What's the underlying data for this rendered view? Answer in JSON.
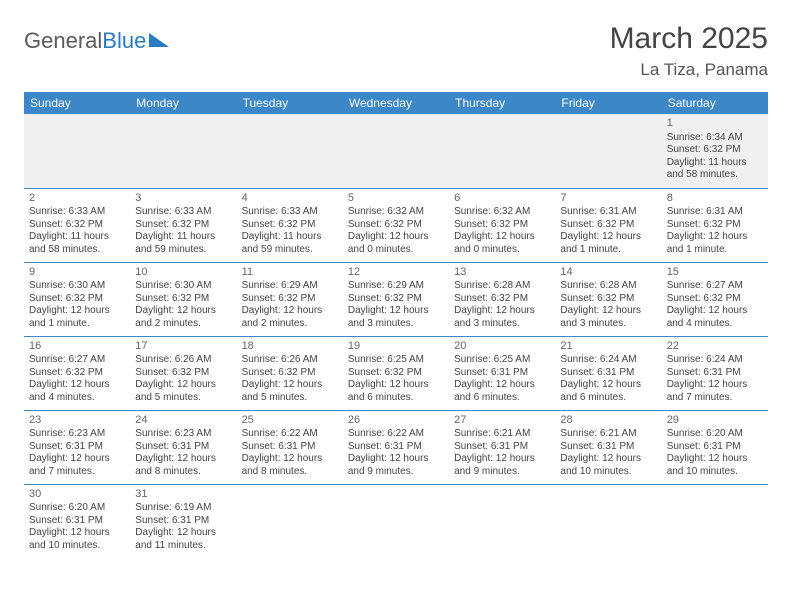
{
  "brand": {
    "part1": "General",
    "part2": "Blue"
  },
  "title": "March 2025",
  "location": "La Tiza, Panama",
  "colors": {
    "header_bg": "#3b87c8",
    "header_text": "#ffffff",
    "cell_border": "#3b87c8",
    "text": "#444444",
    "empty_bg": "#f0f0f0"
  },
  "day_headers": [
    "Sunday",
    "Monday",
    "Tuesday",
    "Wednesday",
    "Thursday",
    "Friday",
    "Saturday"
  ],
  "weeks": [
    [
      null,
      null,
      null,
      null,
      null,
      null,
      {
        "n": 1,
        "sunrise": "6:34 AM",
        "sunset": "6:32 PM",
        "daylight": "11 hours and 58 minutes."
      }
    ],
    [
      {
        "n": 2,
        "sunrise": "6:33 AM",
        "sunset": "6:32 PM",
        "daylight": "11 hours and 58 minutes."
      },
      {
        "n": 3,
        "sunrise": "6:33 AM",
        "sunset": "6:32 PM",
        "daylight": "11 hours and 59 minutes."
      },
      {
        "n": 4,
        "sunrise": "6:33 AM",
        "sunset": "6:32 PM",
        "daylight": "11 hours and 59 minutes."
      },
      {
        "n": 5,
        "sunrise": "6:32 AM",
        "sunset": "6:32 PM",
        "daylight": "12 hours and 0 minutes."
      },
      {
        "n": 6,
        "sunrise": "6:32 AM",
        "sunset": "6:32 PM",
        "daylight": "12 hours and 0 minutes."
      },
      {
        "n": 7,
        "sunrise": "6:31 AM",
        "sunset": "6:32 PM",
        "daylight": "12 hours and 1 minute."
      },
      {
        "n": 8,
        "sunrise": "6:31 AM",
        "sunset": "6:32 PM",
        "daylight": "12 hours and 1 minute."
      }
    ],
    [
      {
        "n": 9,
        "sunrise": "6:30 AM",
        "sunset": "6:32 PM",
        "daylight": "12 hours and 1 minute."
      },
      {
        "n": 10,
        "sunrise": "6:30 AM",
        "sunset": "6:32 PM",
        "daylight": "12 hours and 2 minutes."
      },
      {
        "n": 11,
        "sunrise": "6:29 AM",
        "sunset": "6:32 PM",
        "daylight": "12 hours and 2 minutes."
      },
      {
        "n": 12,
        "sunrise": "6:29 AM",
        "sunset": "6:32 PM",
        "daylight": "12 hours and 3 minutes."
      },
      {
        "n": 13,
        "sunrise": "6:28 AM",
        "sunset": "6:32 PM",
        "daylight": "12 hours and 3 minutes."
      },
      {
        "n": 14,
        "sunrise": "6:28 AM",
        "sunset": "6:32 PM",
        "daylight": "12 hours and 3 minutes."
      },
      {
        "n": 15,
        "sunrise": "6:27 AM",
        "sunset": "6:32 PM",
        "daylight": "12 hours and 4 minutes."
      }
    ],
    [
      {
        "n": 16,
        "sunrise": "6:27 AM",
        "sunset": "6:32 PM",
        "daylight": "12 hours and 4 minutes."
      },
      {
        "n": 17,
        "sunrise": "6:26 AM",
        "sunset": "6:32 PM",
        "daylight": "12 hours and 5 minutes."
      },
      {
        "n": 18,
        "sunrise": "6:26 AM",
        "sunset": "6:32 PM",
        "daylight": "12 hours and 5 minutes."
      },
      {
        "n": 19,
        "sunrise": "6:25 AM",
        "sunset": "6:32 PM",
        "daylight": "12 hours and 6 minutes."
      },
      {
        "n": 20,
        "sunrise": "6:25 AM",
        "sunset": "6:31 PM",
        "daylight": "12 hours and 6 minutes."
      },
      {
        "n": 21,
        "sunrise": "6:24 AM",
        "sunset": "6:31 PM",
        "daylight": "12 hours and 6 minutes."
      },
      {
        "n": 22,
        "sunrise": "6:24 AM",
        "sunset": "6:31 PM",
        "daylight": "12 hours and 7 minutes."
      }
    ],
    [
      {
        "n": 23,
        "sunrise": "6:23 AM",
        "sunset": "6:31 PM",
        "daylight": "12 hours and 7 minutes."
      },
      {
        "n": 24,
        "sunrise": "6:23 AM",
        "sunset": "6:31 PM",
        "daylight": "12 hours and 8 minutes."
      },
      {
        "n": 25,
        "sunrise": "6:22 AM",
        "sunset": "6:31 PM",
        "daylight": "12 hours and 8 minutes."
      },
      {
        "n": 26,
        "sunrise": "6:22 AM",
        "sunset": "6:31 PM",
        "daylight": "12 hours and 9 minutes."
      },
      {
        "n": 27,
        "sunrise": "6:21 AM",
        "sunset": "6:31 PM",
        "daylight": "12 hours and 9 minutes."
      },
      {
        "n": 28,
        "sunrise": "6:21 AM",
        "sunset": "6:31 PM",
        "daylight": "12 hours and 10 minutes."
      },
      {
        "n": 29,
        "sunrise": "6:20 AM",
        "sunset": "6:31 PM",
        "daylight": "12 hours and 10 minutes."
      }
    ],
    [
      {
        "n": 30,
        "sunrise": "6:20 AM",
        "sunset": "6:31 PM",
        "daylight": "12 hours and 10 minutes."
      },
      {
        "n": 31,
        "sunrise": "6:19 AM",
        "sunset": "6:31 PM",
        "daylight": "12 hours and 11 minutes."
      },
      null,
      null,
      null,
      null,
      null
    ]
  ],
  "labels": {
    "sunrise": "Sunrise: ",
    "sunset": "Sunset: ",
    "daylight": "Daylight: "
  }
}
